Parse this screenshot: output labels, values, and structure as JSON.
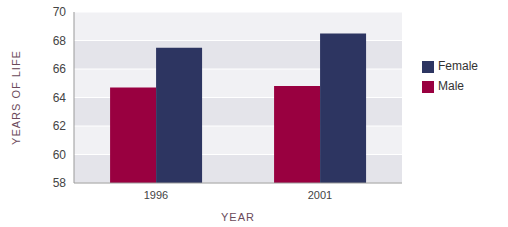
{
  "chart_data": {
    "type": "bar",
    "x_label": "YEAR",
    "y_label": "YEARS OF LIFE",
    "categories": [
      "1996",
      "2001"
    ],
    "series": [
      {
        "name": "Male",
        "color": "#990040",
        "values": [
          64.7,
          64.8
        ]
      },
      {
        "name": "Female",
        "color": "#2d3561",
        "values": [
          67.5,
          68.5
        ]
      }
    ],
    "ylim": [
      58,
      70
    ],
    "yticks": [
      58,
      60,
      62,
      64,
      66,
      68,
      70
    ],
    "grid": true,
    "legend": "right"
  }
}
